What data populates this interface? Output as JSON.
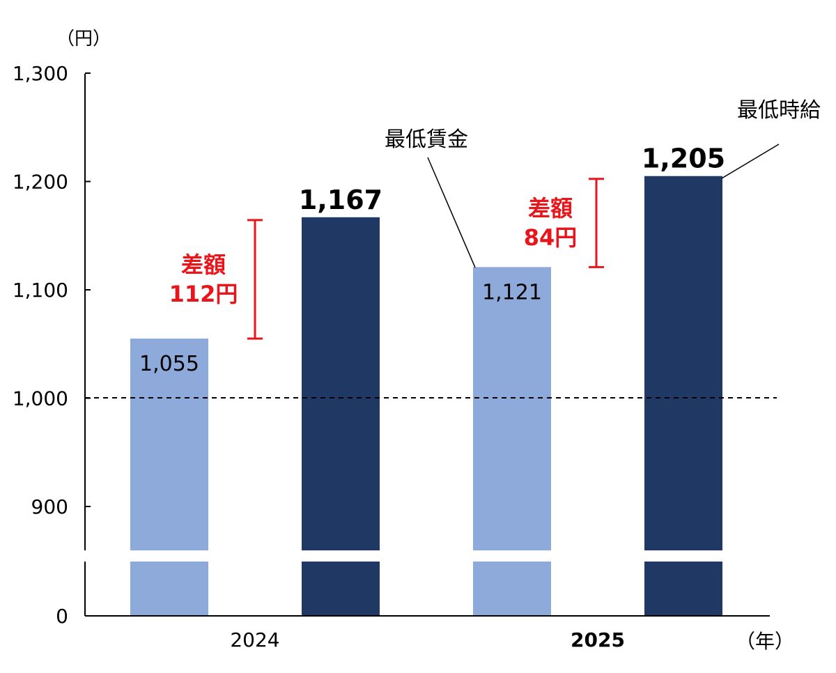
{
  "chart_data": {
    "type": "bar",
    "y_unit": "（円）",
    "x_unit": "（年）",
    "categories": [
      "2024",
      "2025"
    ],
    "series": [
      {
        "name": "最低賃金",
        "values": [
          1055,
          1121
        ],
        "color": "#8eaadb"
      },
      {
        "name": "最低時給",
        "values": [
          1167,
          1205
        ],
        "color": "#203864"
      }
    ],
    "yticks": [
      0,
      900,
      1000,
      1100,
      1200,
      1300
    ],
    "ytick_labels": [
      "0",
      "900",
      "1,000",
      "1,100",
      "1,200",
      "1,300"
    ],
    "ylim": [
      0,
      1300
    ],
    "axis_break": [
      0,
      900
    ],
    "reference_line": 1000,
    "data_labels": [
      [
        "1,055",
        "1,121"
      ],
      [
        "1,167",
        "1,205"
      ]
    ],
    "gap_annotations": [
      {
        "category": "2024",
        "line1": "差額",
        "line2": "112円",
        "from": 1055,
        "to": 1167
      },
      {
        "category": "2025",
        "line1": "差額",
        "line2": "84円",
        "from": 1121,
        "to": 1205
      }
    ],
    "annotation_color": "#e8161b"
  }
}
